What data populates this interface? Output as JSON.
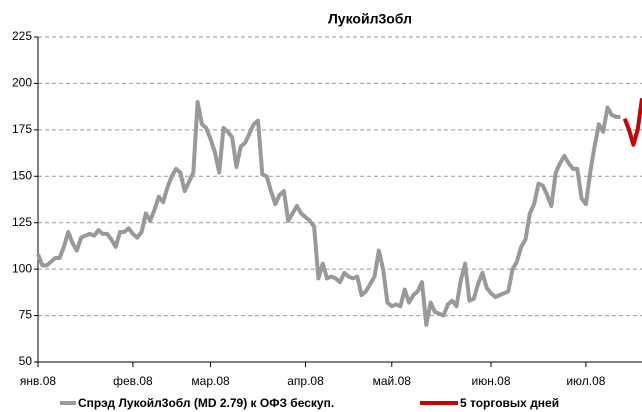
{
  "chart_data": {
    "type": "line",
    "title": "Лукойл3обл",
    "ylim": [
      50,
      225
    ],
    "yticks": [
      50,
      75,
      100,
      125,
      150,
      175,
      200,
      225
    ],
    "grid": true,
    "xlim": [
      0,
      140
    ],
    "xticks": [
      {
        "value": 0,
        "label": "янв.08"
      },
      {
        "value": 22,
        "label": "фев.08"
      },
      {
        "value": 40,
        "label": "мар.08"
      },
      {
        "value": 62,
        "label": "апр.08"
      },
      {
        "value": 82,
        "label": "май.08"
      },
      {
        "value": 105,
        "label": "июн.08"
      },
      {
        "value": 127,
        "label": "июл.08"
      }
    ],
    "series": [
      {
        "name": "Спрэд Лукойл3обл (MD 2.79) к ОФЗ бескуп.",
        "color": "#999999",
        "values": [
          108,
          102,
          102,
          104,
          106,
          106,
          112,
          120,
          114,
          110,
          117,
          118,
          119,
          118,
          121,
          119,
          119,
          116,
          112,
          120,
          120,
          122,
          119,
          117,
          120,
          130,
          126,
          132,
          139,
          136,
          144,
          150,
          154,
          152,
          142,
          147,
          152,
          190,
          178,
          176,
          170,
          163,
          152,
          176,
          174,
          171,
          155,
          166,
          168,
          173,
          178,
          180,
          151,
          150,
          142,
          135,
          140,
          142,
          126,
          130,
          134,
          130,
          128,
          126,
          123,
          95,
          103,
          95,
          96,
          95,
          93,
          98,
          96,
          95,
          96,
          86,
          88,
          92,
          96,
          110,
          100,
          82,
          80,
          81,
          80,
          89,
          82,
          86,
          88,
          93,
          70,
          82,
          77,
          76,
          75,
          81,
          83,
          80,
          94,
          103,
          83,
          84,
          92,
          98,
          90,
          87,
          85,
          86,
          87,
          88,
          100,
          104,
          112,
          116,
          130,
          135,
          146,
          145,
          140,
          134,
          152,
          157,
          161,
          157,
          154,
          154,
          138,
          135,
          152,
          166,
          178,
          174,
          187,
          183,
          182,
          182,
          null,
          null,
          null,
          null,
          null
        ]
      },
      {
        "name": "5 торговых дней",
        "color": "#cc0000",
        "values": [
          null,
          null,
          null,
          null,
          null,
          null,
          null,
          null,
          null,
          null,
          null,
          null,
          null,
          null,
          null,
          null,
          null,
          null,
          null,
          null,
          null,
          null,
          null,
          null,
          null,
          null,
          null,
          null,
          null,
          null,
          null,
          null,
          null,
          null,
          null,
          null,
          null,
          null,
          null,
          null,
          null,
          null,
          null,
          null,
          null,
          null,
          null,
          null,
          null,
          null,
          null,
          null,
          null,
          null,
          null,
          null,
          null,
          null,
          null,
          null,
          null,
          null,
          null,
          null,
          null,
          null,
          null,
          null,
          null,
          null,
          null,
          null,
          null,
          null,
          null,
          null,
          null,
          null,
          null,
          null,
          null,
          null,
          null,
          null,
          null,
          null,
          null,
          null,
          null,
          null,
          null,
          null,
          null,
          null,
          null,
          null,
          null,
          null,
          null,
          null,
          null,
          null,
          null,
          null,
          null,
          null,
          null,
          null,
          null,
          null,
          null,
          null,
          null,
          null,
          null,
          null,
          null,
          null,
          null,
          null,
          null,
          null,
          null,
          null,
          null,
          null,
          null,
          null,
          null,
          null,
          null,
          null,
          null,
          null,
          null,
          null,
          181,
          175,
          167,
          175,
          192
        ]
      }
    ]
  }
}
